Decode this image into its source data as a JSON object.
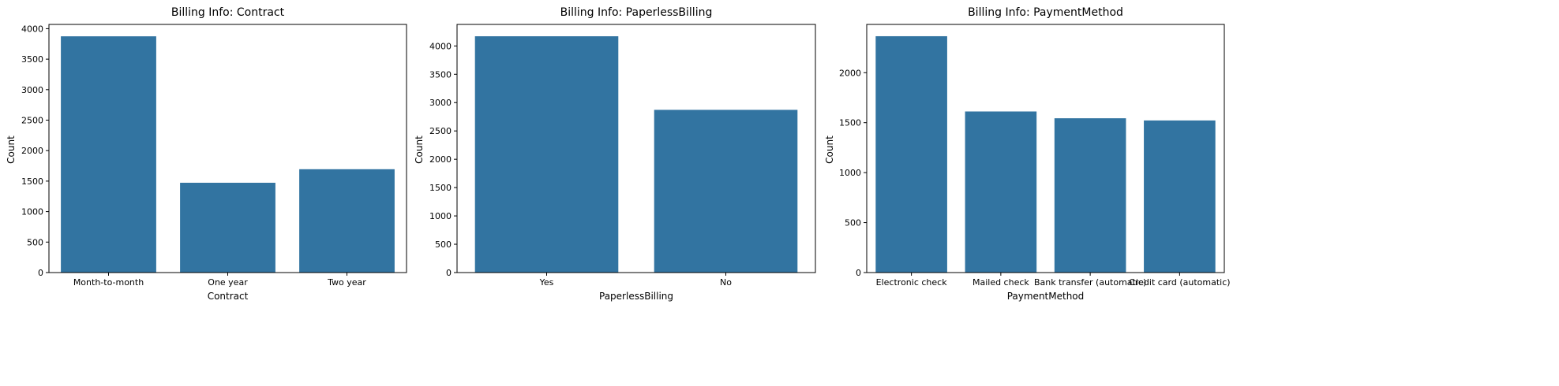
{
  "colors": {
    "bar": "#3274a1",
    "axis": "#000000",
    "background": "#ffffff"
  },
  "chart_data": [
    {
      "type": "bar",
      "title": "Billing Info: Contract",
      "xlabel": "Contract",
      "ylabel": "Count",
      "categories": [
        "Month-to-month",
        "One year",
        "Two year"
      ],
      "values": [
        3875,
        1473,
        1695
      ],
      "ylim": [
        0,
        4070
      ],
      "yticks": [
        0,
        500,
        1000,
        1500,
        2000,
        2500,
        3000,
        3500,
        4000
      ],
      "grid": false,
      "legend": "none"
    },
    {
      "type": "bar",
      "title": "Billing Info: PaperlessBilling",
      "xlabel": "PaperlessBilling",
      "ylabel": "Count",
      "categories": [
        "Yes",
        "No"
      ],
      "values": [
        4171,
        2872
      ],
      "ylim": [
        0,
        4380
      ],
      "yticks": [
        0,
        500,
        1000,
        1500,
        2000,
        2500,
        3000,
        3500,
        4000
      ],
      "grid": false,
      "legend": "none"
    },
    {
      "type": "bar",
      "title": "Billing Info: PaymentMethod",
      "xlabel": "PaymentMethod",
      "ylabel": "Count",
      "categories": [
        "Electronic check",
        "Mailed check",
        "Bank transfer (automatic)",
        "Credit card (automatic)"
      ],
      "values": [
        2365,
        1612,
        1544,
        1522
      ],
      "ylim": [
        0,
        2483
      ],
      "yticks": [
        0,
        500,
        1000,
        1500,
        2000
      ],
      "grid": false,
      "legend": "none"
    }
  ]
}
